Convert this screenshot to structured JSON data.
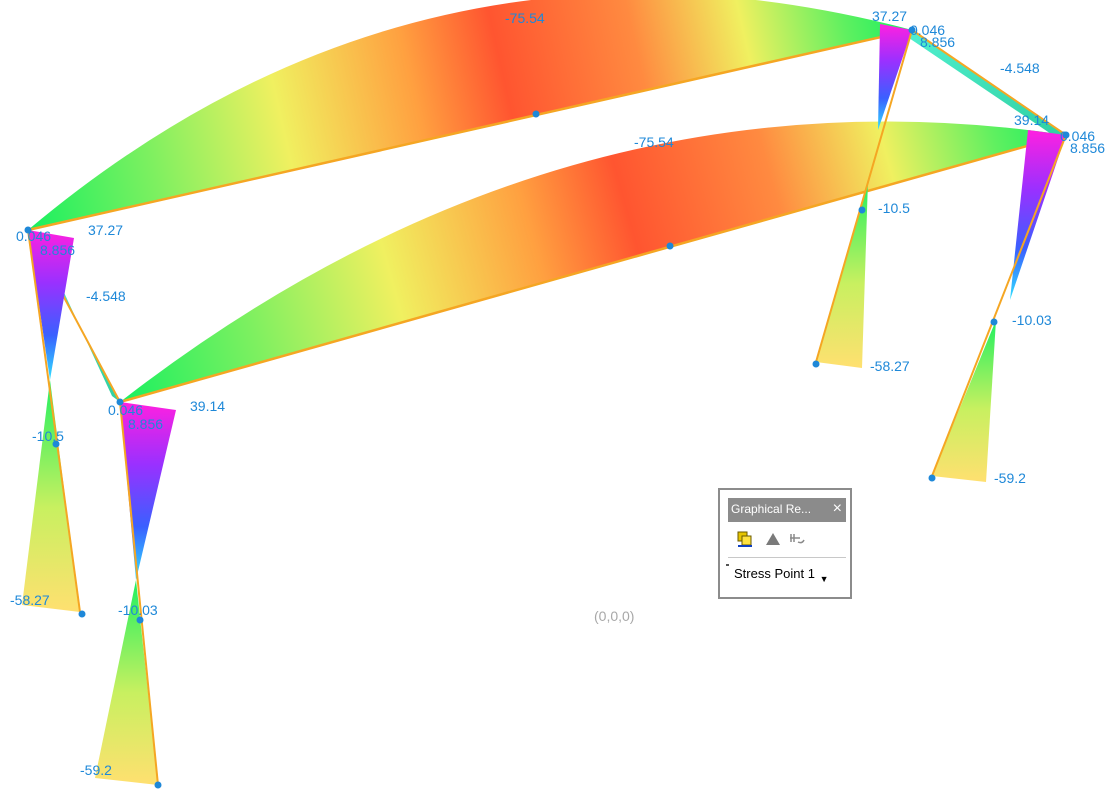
{
  "view": {
    "origin_label": "(0,0,0)",
    "value_labels": {
      "beam_back_mid": "-75.54",
      "beam_front_mid": "-75.54",
      "back_right_top_moment": "37.27",
      "back_right_joint_a": "0.046",
      "back_right_joint_b": "8.856",
      "back_right_mid_beam": "-4.548",
      "front_right_top_moment": "39.14",
      "front_right_joint_a": "0.046",
      "front_right_joint_b": "8.856",
      "back_left_top_moment": "37.27",
      "back_left_joint_a": "0.046",
      "back_left_joint_b": "8.856",
      "back_left_mid_beam": "-4.548",
      "front_left_top_moment": "39.14",
      "front_left_joint_a": "0.046",
      "front_left_joint_b": "8.856",
      "back_right_col_mid": "-10.5",
      "front_right_col_mid": "-10.03",
      "back_right_col_base": "-58.27",
      "front_right_col_base": "-59.2",
      "back_left_col_mid": "-10.5",
      "front_left_col_mid": "-10.03",
      "back_left_col_base": "-58.27",
      "front_left_col_base": "-59.2"
    }
  },
  "panel": {
    "title": "Graphical Re...",
    "close_icon": "close-icon",
    "tools": [
      "copy-results-icon",
      "triangle-icon",
      "section-icon"
    ],
    "stress_point_select": "Stress Point 1"
  },
  "colors": {
    "value_text": "#1e88d8",
    "frame_line": "#f5a623",
    "panel_title_bg": "#8b8b8b"
  }
}
